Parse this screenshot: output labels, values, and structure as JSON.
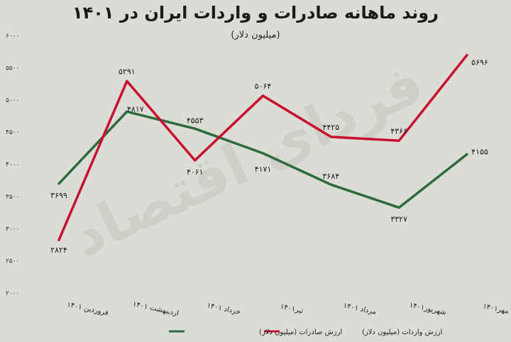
{
  "chart_data": {
    "type": "line",
    "title": "روند ماهانه صادرات و واردات ایران در ۱۴۰۱",
    "subtitle": "(میلیون دلار)",
    "watermark": "فردای اقتصاد",
    "categories": [
      "فروردین ۱۴۰۱",
      "اردیبهشت ۱۴۰۱",
      "خرداد ۱۴۰۱",
      "تیر۱۴۰۱",
      "مرداد ۱۴۰۱",
      "شهریور۱۴۰۱",
      "مهر۱۴۰۱"
    ],
    "y_ticks": [
      "۲۰۰۰",
      "۲۵۰۰",
      "۳۰۰۰",
      "۳۵۰۰",
      "۴۰۰۰",
      "۴۵۰۰",
      "۵۰۰۰",
      "۵۵۰۰",
      "۶۰۰۰"
    ],
    "ylim": [
      2000,
      6000
    ],
    "grid": false,
    "legend_position": "bottom",
    "series": [
      {
        "name": "ارزش صادرات (میلیون دلار)",
        "color": "#2d6a3e",
        "values": [
          3699,
          4817,
          4553,
          4171,
          3684,
          3327,
          4155
        ],
        "labels": [
          "۳۶۹۹",
          "۴۸۱۷",
          "۴۵۵۳",
          "۴۱۷۱",
          "۳۶۸۴",
          "۳۳۲۷",
          "۴۱۵۵"
        ]
      },
      {
        "name": "ارزش واردات (میلیون دلار)",
        "color": "#c8102e",
        "values": [
          2824,
          5291,
          4061,
          5064,
          4425,
          4366,
          5696
        ],
        "labels": [
          "۲۸۲۴",
          "۵۲۹۱",
          "۴۰۶۱",
          "۵۰۶۴",
          "۴۴۲۵",
          "۴۳۶۶",
          "۵۶۹۶"
        ]
      }
    ]
  }
}
